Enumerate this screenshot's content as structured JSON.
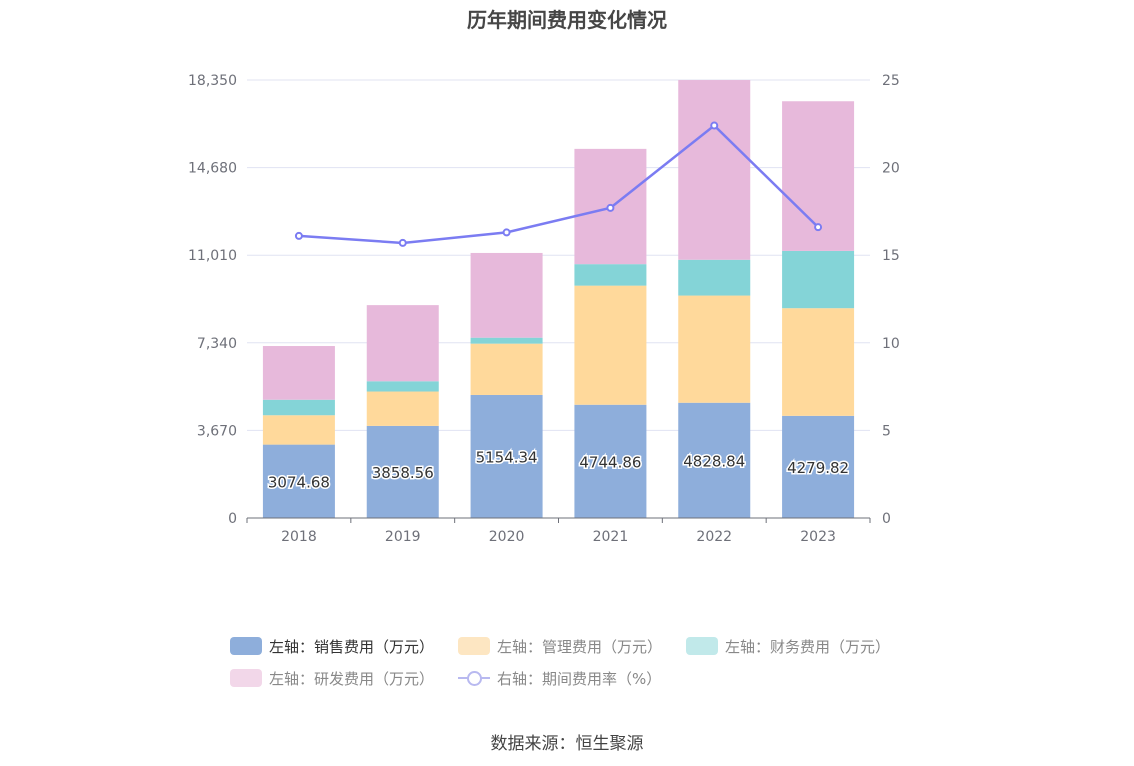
{
  "title": "历年期间费用变化情况",
  "source": "数据来源：恒生聚源",
  "legend": [
    {
      "label": "左轴：销售费用（万元）",
      "color": "#8eaedb",
      "kind": "bar"
    },
    {
      "label": "左轴：管理费用（万元）",
      "color": "#fde6c2",
      "kind": "bar"
    },
    {
      "label": "左轴：财务费用（万元）",
      "color": "#c1e9ea",
      "kind": "bar"
    },
    {
      "label": "左轴：研发费用（万元）",
      "color": "#f2d7e9",
      "kind": "bar"
    },
    {
      "label": "右轴：期间费用率（%）",
      "color": "#b8b9f0",
      "kind": "line"
    }
  ],
  "chart_data": {
    "type": "bar",
    "stacked": true,
    "categories": [
      "2018",
      "2019",
      "2020",
      "2021",
      "2022",
      "2023"
    ],
    "series": [
      {
        "name": "左轴：销售费用（万元）",
        "axis": "left",
        "color": "#8eaedb",
        "values": [
          3074.68,
          3858.56,
          5154.34,
          4744.86,
          4828.84,
          4279.82
        ],
        "data_labels": [
          "3074.68",
          "3858.56",
          "5154.34",
          "4744.86",
          "4828.84",
          "4279.82"
        ]
      },
      {
        "name": "左轴：管理费用（万元）",
        "axis": "left",
        "color": "#ffd99b",
        "values": [
          1230,
          1440,
          2150,
          4990,
          4490,
          4510
        ]
      },
      {
        "name": "左轴：财务费用（万元）",
        "axis": "left",
        "color": "#84d4d7",
        "values": [
          650,
          430,
          250,
          900,
          1500,
          2400
        ]
      },
      {
        "name": "左轴：研发费用（万元）",
        "axis": "left",
        "color": "#e7b9db",
        "values": [
          2250,
          3190,
          3550,
          4830,
          7530,
          6270
        ]
      },
      {
        "name": "右轴：期间费用率（%）",
        "axis": "right",
        "type": "line",
        "color": "#7b7cf2",
        "values": [
          16.1,
          15.7,
          16.3,
          17.7,
          22.4,
          16.6
        ]
      }
    ],
    "y_left": {
      "ylim": [
        0,
        18350
      ],
      "ticks": [
        "0",
        "3,670",
        "7,340",
        "11,010",
        "14,680",
        "18,350"
      ]
    },
    "y_right": {
      "ylim": [
        0,
        25
      ],
      "ticks": [
        "0",
        "5",
        "10",
        "15",
        "20",
        "25"
      ]
    },
    "grid": true,
    "legend_position": "bottom"
  }
}
